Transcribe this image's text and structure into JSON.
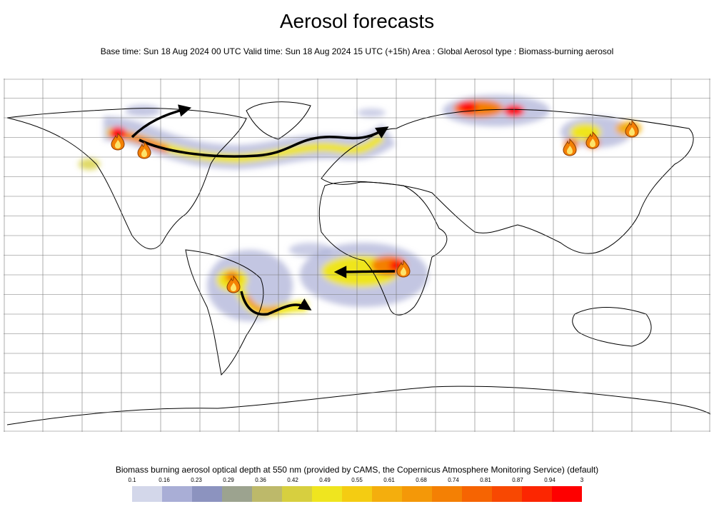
{
  "title": "Aerosol forecasts",
  "subtitle": "Base time: Sun 18 Aug 2024 00 UTC Valid time: Sun 18 Aug 2024 15 UTC (+15h) Area : Global Aerosol type : Biomass-burning aerosol",
  "legend": {
    "title": "Biomass burning aerosol optical depth at 550 nm (provided by CAMS, the Copernicus Atmosphere Monitoring Service) (default)",
    "ticks": [
      "0.1",
      "0.16",
      "0.23",
      "0.29",
      "0.36",
      "0.42",
      "0.49",
      "0.55",
      "0.61",
      "0.68",
      "0.74",
      "0.81",
      "0.87",
      "0.94",
      "3"
    ],
    "colors": [
      "#d3d7ea",
      "#a9aed6",
      "#8c93bf",
      "#9ca38f",
      "#bdb96a",
      "#d7cf3f",
      "#efe51f",
      "#f4cc12",
      "#f4ae0d",
      "#f49808",
      "#f48004",
      "#f66402",
      "#f84802",
      "#fc2601",
      "#fe0000"
    ]
  },
  "map": {
    "fire_icon": "fire-icon",
    "arrow_icon": "arrow-icon",
    "plume_colors": {
      "low": "#a9aed6",
      "mid": "#efe51f",
      "high": "#f48004",
      "peak": "#fe0000"
    }
  }
}
